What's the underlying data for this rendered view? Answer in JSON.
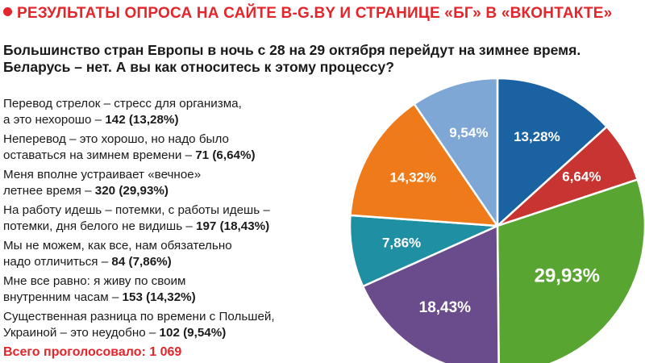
{
  "header": {
    "title": "РЕЗУЛЬТАТЫ ОПРОСА НА САЙТЕ B-G.BY И СТРАНИЦЕ «БГ» В «ВКОНТАКТЕ»"
  },
  "question": {
    "line1": "Большинство стран Европы в ночь с 28 на 29 октября перейдут на зимнее время.",
    "line2": "Беларусь – нет. А вы как относитесь к этому процессу?"
  },
  "items": [
    {
      "line1": "Перевод стрелок – стресс для организма,",
      "line2": "а это нехорошо – ",
      "count": "142 (13,28%)"
    },
    {
      "line1": "Неперевод – это хорошо, но надо было",
      "line2": "оставаться на зимнем времени – ",
      "count": "71 (6,64%)"
    },
    {
      "line1": "Меня вполне устраивает «вечное»",
      "line2": "летнее время – ",
      "count": "320 (29,93%)"
    },
    {
      "line1": "На работу идешь – потемки, с работы идешь –",
      "line2": "потемки, дня белого не видишь – ",
      "count": "197 (18,43%)"
    },
    {
      "line1": "Мы не можем, как все, нам обязательно",
      "line2": "надо отличиться – ",
      "count": "84 (7,86%)"
    },
    {
      "line1": "Мне все равно: я живу по своим",
      "line2": "внутренним часам – ",
      "count": "153 (14,32%)"
    },
    {
      "line1": "Существенная разница по времени с Польшей,",
      "line2": "Украиной – это неудобно – ",
      "count": "102 (9,54%)"
    }
  ],
  "total": "Всего проголосовало: 1 069",
  "colors": {
    "accent": "#e3262b"
  },
  "chart_data": {
    "type": "pie",
    "slices": [
      {
        "label": "13,28%",
        "value": 13.28,
        "color": "#1b62a3"
      },
      {
        "label": "6,64%",
        "value": 6.64,
        "color": "#c73432"
      },
      {
        "label": "29,93%",
        "value": 29.93,
        "color": "#59a532"
      },
      {
        "label": "18,43%",
        "value": 18.43,
        "color": "#6a4b8b"
      },
      {
        "label": "7,86%",
        "value": 7.86,
        "color": "#1f8fa3"
      },
      {
        "label": "14,32%",
        "value": 14.32,
        "color": "#ef7a1a"
      },
      {
        "label": "9,54%",
        "value": 9.54,
        "color": "#7ea7d6"
      }
    ],
    "start_angle_deg": 0,
    "direction": "clockwise"
  }
}
